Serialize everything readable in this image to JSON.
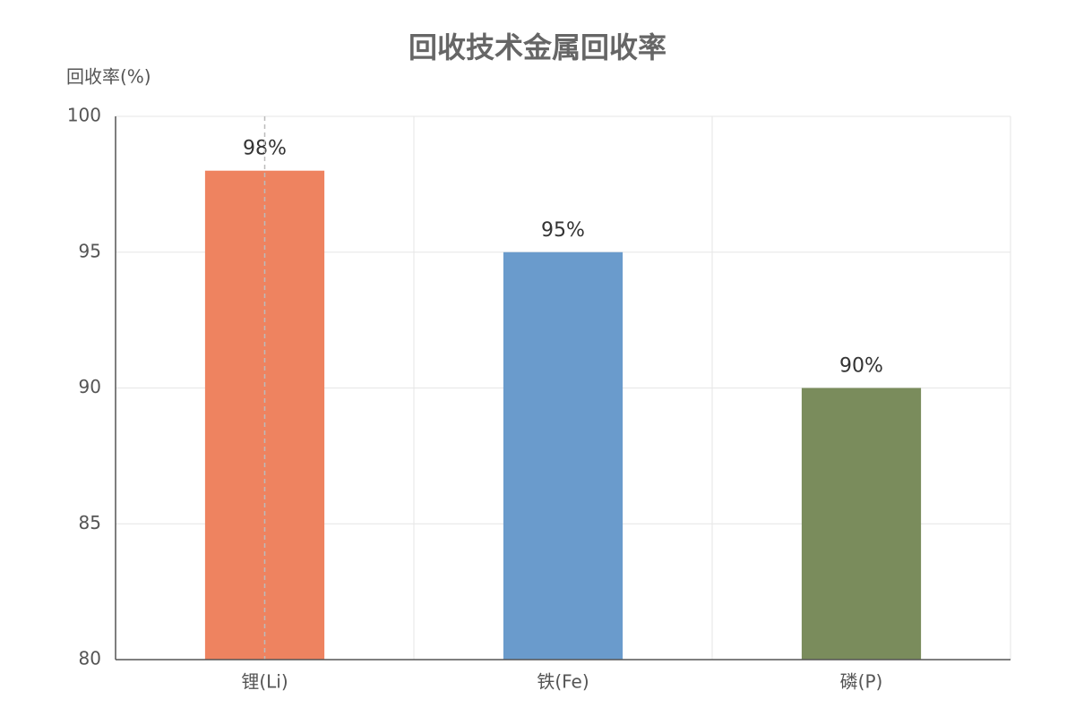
{
  "chart_data": {
    "type": "bar",
    "title": "回收技术金属回收率",
    "y_label": "回收率(%)",
    "categories": [
      "锂(Li)",
      "铁(Fe)",
      "磷(P)"
    ],
    "values": [
      98,
      95,
      90
    ],
    "value_labels": [
      "98%",
      "95%",
      "90%"
    ],
    "colors": [
      "#ee8360",
      "#6a9bcc",
      "#7a8c5c"
    ],
    "ylim": [
      80,
      100
    ],
    "yticks": [
      80,
      85,
      90,
      95,
      100
    ],
    "grid": true
  }
}
